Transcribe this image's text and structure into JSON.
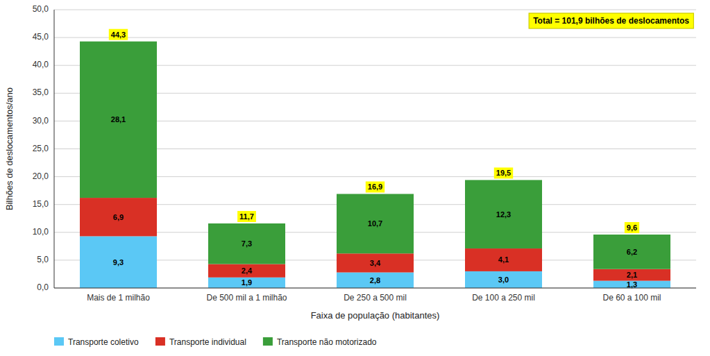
{
  "chart_data": {
    "type": "bar",
    "stacked": true,
    "data_labels": true,
    "grid": true,
    "legend": "bottom",
    "xlabel": "Faixa de população (habitantes)",
    "ylabel": "Bilhões de deslocamentos/ano",
    "annotation": "Total = 101,9 bilhões de deslocamentos",
    "categories": [
      "Mais de 1 milhão",
      "De 500 mil a 1 milhão",
      "De 250 a 500 mil",
      "De 100 a 250 mil",
      "De 60 a 100 mil"
    ],
    "series": [
      {
        "name": "Transporte coletivo",
        "color": "#5bc8f5",
        "values": [
          9.3,
          1.9,
          2.8,
          3.0,
          1.3
        ],
        "value_labels": [
          "9,3",
          "1,9",
          "2,8",
          "3,0",
          "1,3"
        ]
      },
      {
        "name": "Transporte individual",
        "color": "#d93025",
        "values": [
          6.9,
          2.4,
          3.4,
          4.1,
          2.1
        ],
        "value_labels": [
          "6,9",
          "2,4",
          "3,4",
          "4,1",
          "2,1"
        ]
      },
      {
        "name": "Transporte não motorizado",
        "color": "#3a9e3a",
        "values": [
          28.1,
          7.3,
          10.7,
          12.3,
          6.2
        ],
        "value_labels": [
          "28,1",
          "7,3",
          "10,7",
          "12,3",
          "6,2"
        ]
      }
    ],
    "totals": [
      44.3,
      11.7,
      16.9,
      19.5,
      9.6
    ],
    "total_labels": [
      "44,3",
      "11,7",
      "16,9",
      "19,5",
      "9,6"
    ],
    "ylim": [
      0,
      50
    ],
    "yticks": [
      {
        "value": 0.0,
        "label": "0,0"
      },
      {
        "value": 5.0,
        "label": "5,0"
      },
      {
        "value": 10.0,
        "label": "10,0"
      },
      {
        "value": 15.0,
        "label": "15,0"
      },
      {
        "value": 20.0,
        "label": "20,0"
      },
      {
        "value": 25.0,
        "label": "25,0"
      },
      {
        "value": 30.0,
        "label": "30,0"
      },
      {
        "value": 35.0,
        "label": "35,0"
      },
      {
        "value": 40.0,
        "label": "40,0"
      },
      {
        "value": 45.0,
        "label": "45,0"
      },
      {
        "value": 50.0,
        "label": "50,0"
      }
    ]
  }
}
